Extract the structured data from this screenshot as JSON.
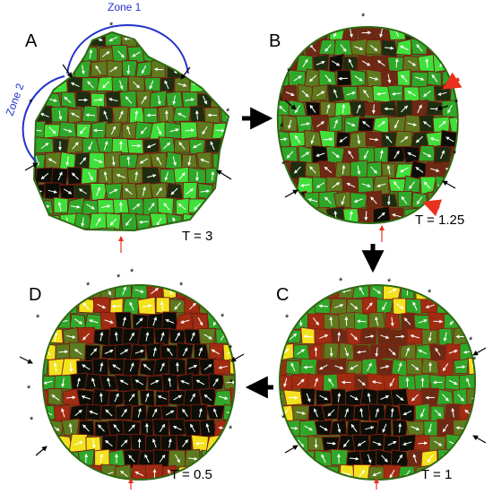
{
  "panels": [
    {
      "letter": "A",
      "time": "T = 3"
    },
    {
      "letter": "B",
      "time": "T = 1.25"
    },
    {
      "letter": "C",
      "time": "T = 1"
    },
    {
      "letter": "D",
      "time": "T = 0.5"
    }
  ],
  "zones": [
    "Zone 1",
    "Zone 2"
  ],
  "marker": "*"
}
